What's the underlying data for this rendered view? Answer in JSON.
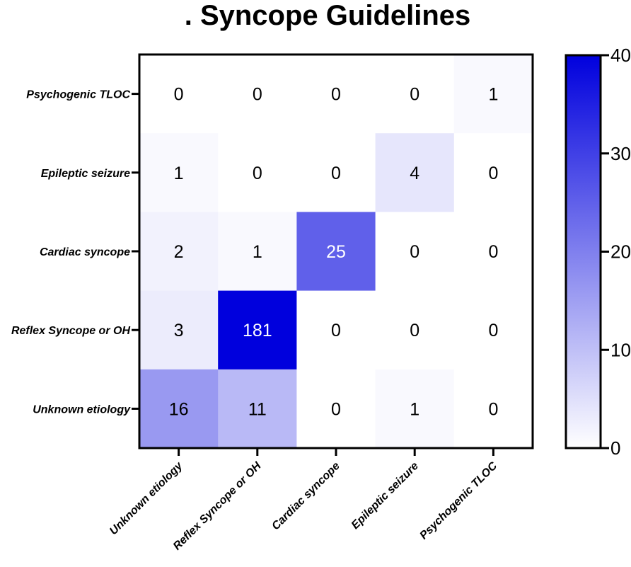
{
  "chart_data": {
    "type": "heatmap",
    "title": ". Syncope Guidelines",
    "rows": [
      "Psychogenic TLOC",
      "Epileptic seizure",
      "Cardiac syncope",
      "Reflex Syncope or OH",
      "Unknown etiology"
    ],
    "columns": [
      "Unknown etiology",
      "Reflex Syncope or OH",
      "Cardiac syncope",
      "Epileptic seizure",
      "Psychogenic TLOC"
    ],
    "values": [
      [
        0,
        0,
        0,
        0,
        1
      ],
      [
        1,
        0,
        0,
        4,
        0
      ],
      [
        2,
        1,
        25,
        0,
        0
      ],
      [
        3,
        181,
        0,
        0,
        0
      ],
      [
        16,
        11,
        0,
        1,
        0
      ]
    ],
    "colorbar": {
      "min": 0,
      "max": 40,
      "ticks": [
        0,
        10,
        20,
        30,
        40
      ],
      "tick_labels": [
        "0",
        "10",
        "20",
        "30",
        "40"
      ],
      "color_low": "#ffffff",
      "color_high": "#0000dd"
    }
  }
}
